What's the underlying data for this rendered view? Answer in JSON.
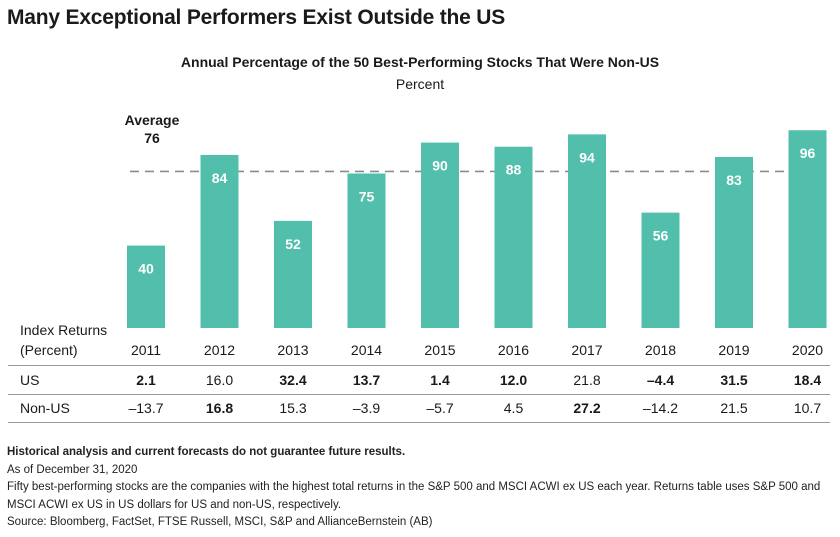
{
  "main_title": "Many Exceptional Performers Exist Outside the US",
  "chart_data": {
    "type": "bar",
    "title": "Annual Percentage of the 50 Best-Performing Stocks That Were Non-US",
    "subtitle": "Percent",
    "categories": [
      "2011",
      "2012",
      "2013",
      "2014",
      "2015",
      "2016",
      "2017",
      "2018",
      "2019",
      "2020"
    ],
    "values": [
      40,
      84,
      52,
      75,
      90,
      88,
      94,
      56,
      83,
      96
    ],
    "average": {
      "label": "Average",
      "value": 76
    },
    "ylim": [
      0,
      100
    ],
    "bar_color": "#52bfad",
    "avg_line_color": "#8c8c8c",
    "grid": false
  },
  "table": {
    "header_line1": "Index Returns",
    "header_line2": "(Percent)",
    "rows": [
      {
        "label": "US",
        "values": [
          "2.1",
          "16.0",
          "32.4",
          "13.7",
          "1.4",
          "12.0",
          "21.8",
          "–4.4",
          "31.5",
          "18.4"
        ],
        "bold": [
          true,
          false,
          true,
          true,
          true,
          true,
          false,
          true,
          true,
          true
        ]
      },
      {
        "label": "Non-US",
        "values": [
          "–13.7",
          "16.8",
          "15.3",
          "–3.9",
          "–5.7",
          "4.5",
          "27.2",
          "–14.2",
          "21.5",
          "10.7"
        ],
        "bold": [
          false,
          true,
          false,
          false,
          false,
          false,
          true,
          false,
          false,
          false
        ]
      }
    ]
  },
  "notes": {
    "disclaimer": "Historical analysis and current forecasts do not guarantee future results.",
    "as_of": "As of December 31, 2020",
    "description": "Fifty best-performing stocks are the companies with the highest total returns in the S&P 500 and MSCI ACWI ex US each year. Returns table uses S&P 500 and MSCI ACWI ex US in US dollars for US and non-US, respectively.",
    "source": "Source: Bloomberg, FactSet, FTSE Russell, MSCI, S&P and AllianceBernstein (AB)"
  }
}
